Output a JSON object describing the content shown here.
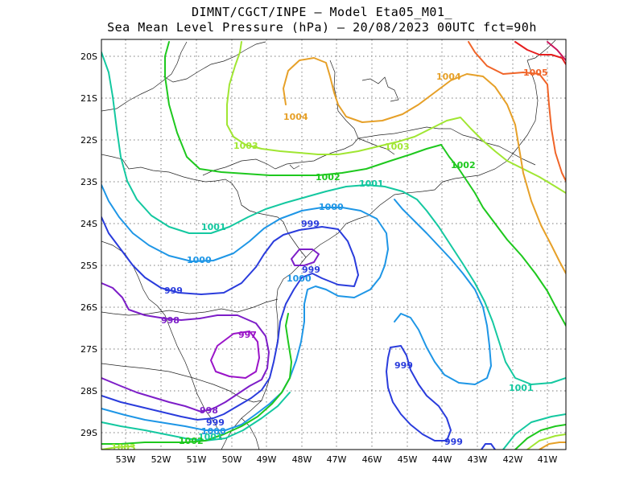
{
  "title": {
    "line1": "DIMNT/CGCT/INPE –  Model Eta05_M01_",
    "line2": "Sea Mean Level Pressure (hPa) – 20/08/2023 00UTC fct=90h"
  },
  "lon_ticks": [
    "53W",
    "52W",
    "51W",
    "50W",
    "49W",
    "48W",
    "47W",
    "46W",
    "45W",
    "44W",
    "43W",
    "42W",
    "41W"
  ],
  "lat_ticks": [
    "20S",
    "21S",
    "22S",
    "23S",
    "24S",
    "25S",
    "26S",
    "27S",
    "28S",
    "29S"
  ],
  "contour_labels": [
    {
      "id": "l997",
      "text": "997",
      "level": 997
    },
    {
      "id": "l998a",
      "text": "998",
      "level": 998
    },
    {
      "id": "l998b",
      "text": "998",
      "level": 998
    },
    {
      "id": "l999a",
      "text": "999",
      "level": 999
    },
    {
      "id": "l999b",
      "text": "999",
      "level": 999
    },
    {
      "id": "l999c",
      "text": "999",
      "level": 999
    },
    {
      "id": "l999d",
      "text": "999",
      "level": 999
    },
    {
      "id": "l999e",
      "text": "999",
      "level": 999
    },
    {
      "id": "l999f",
      "text": "999",
      "level": 999
    },
    {
      "id": "l1000a",
      "text": "1000",
      "level": 1000
    },
    {
      "id": "l1000b",
      "text": "1000",
      "level": 1000
    },
    {
      "id": "l1000c",
      "text": "1000",
      "level": 1000
    },
    {
      "id": "l1000d",
      "text": "1000",
      "level": 1000
    },
    {
      "id": "l1001a",
      "text": "1001",
      "level": 1001
    },
    {
      "id": "l1001b",
      "text": "1001",
      "level": 1001
    },
    {
      "id": "l1001c",
      "text": "1001",
      "level": 1001
    },
    {
      "id": "l1001d",
      "text": "1001",
      "level": 1001
    },
    {
      "id": "l1002a",
      "text": "1002",
      "level": 1002
    },
    {
      "id": "l1002b",
      "text": "1002",
      "level": 1002
    },
    {
      "id": "l1002c",
      "text": "1002",
      "level": 1002
    },
    {
      "id": "l1003a",
      "text": "1003",
      "level": 1003
    },
    {
      "id": "l1003b",
      "text": "1003",
      "level": 1003
    },
    {
      "id": "l1003c",
      "text": "1003",
      "level": 1003
    },
    {
      "id": "l1004a",
      "text": "1004",
      "level": 1004
    },
    {
      "id": "l1004b",
      "text": "1004",
      "level": 1004
    },
    {
      "id": "l1005",
      "text": "1005",
      "level": 1005
    }
  ],
  "colors": {
    "997": "#9a14c8",
    "998": "#7d1ec8",
    "999": "#2a3cdc",
    "1000": "#1e96e6",
    "1001": "#14c8a0",
    "1002": "#1ec81e",
    "1003": "#a0e632",
    "1004": "#e6a028",
    "1005": "#f06428",
    "1006": "#e61e1e",
    "1007": "#c8145a"
  }
}
